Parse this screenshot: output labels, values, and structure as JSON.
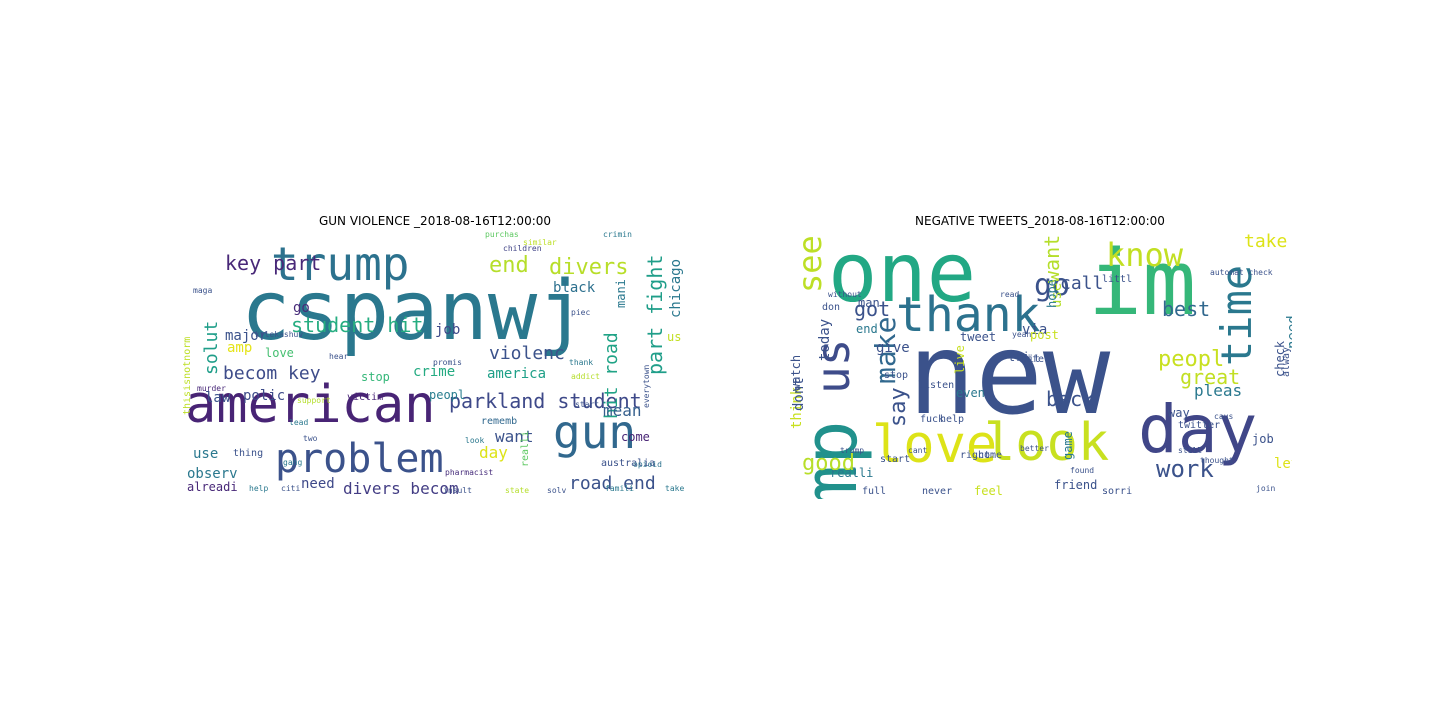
{
  "clouds": [
    {
      "title": "GUN VIOLENCE _2018-08-16T12:00:00",
      "words": [
        {
          "text": "cspanwj",
          "color": "#2a788e"
        },
        {
          "text": "american",
          "color": "#482475"
        },
        {
          "text": "trump",
          "color": "#2c728e"
        },
        {
          "text": "problem",
          "color": "#3b528b"
        },
        {
          "text": "gun",
          "color": "#31688e"
        },
        {
          "text": "key part",
          "color": "#482878"
        },
        {
          "text": "end",
          "color": "#b5de2b"
        },
        {
          "text": "divers",
          "color": "#b8de29"
        },
        {
          "text": "student hit",
          "color": "#26ad81"
        },
        {
          "text": "parkland student",
          "color": "#3e4989"
        },
        {
          "text": "becom key",
          "color": "#3e4c8a"
        },
        {
          "text": "violenc",
          "color": "#3b528b"
        },
        {
          "text": "road end",
          "color": "#3b528b"
        },
        {
          "text": "divers becom",
          "color": "#433d84"
        },
        {
          "text": "part fight",
          "color": "#1f9e89"
        },
        {
          "text": "hit road",
          "color": "#20a386"
        },
        {
          "text": "solut",
          "color": "#1f9e89"
        },
        {
          "text": "chicago",
          "color": "#2a788e"
        },
        {
          "text": "black",
          "color": "#2d708e"
        },
        {
          "text": "job",
          "color": "#3e4989"
        },
        {
          "text": "major",
          "color": "#3b528b"
        },
        {
          "text": "amp",
          "color": "#e5e419"
        },
        {
          "text": "go",
          "color": "#472c7a"
        },
        {
          "text": "america",
          "color": "#1fa088"
        },
        {
          "text": "mean",
          "color": "#355f8d"
        },
        {
          "text": "want",
          "color": "#3b528b"
        },
        {
          "text": "crime",
          "color": "#25ab82"
        },
        {
          "text": "stop",
          "color": "#35b779"
        },
        {
          "text": "peopl",
          "color": "#287d8e"
        },
        {
          "text": "polic",
          "color": "#3e4c8a"
        },
        {
          "text": "law",
          "color": "#3b528b"
        },
        {
          "text": "love",
          "color": "#44bf70"
        },
        {
          "text": "victim",
          "color": "#482475"
        },
        {
          "text": "use",
          "color": "#2a788e"
        },
        {
          "text": "observ",
          "color": "#2a788e"
        },
        {
          "text": "day",
          "color": "#dde318"
        },
        {
          "text": "need",
          "color": "#3e4989"
        },
        {
          "text": "alreadi",
          "color": "#482878"
        },
        {
          "text": "come",
          "color": "#482475"
        },
        {
          "text": "mani",
          "color": "#2a788e"
        },
        {
          "text": "us",
          "color": "#c2df23"
        },
        {
          "text": "thisisnotnorm",
          "color": "#bddf26"
        },
        {
          "text": "rememb",
          "color": "#31688e"
        },
        {
          "text": "thing",
          "color": "#3b528b"
        },
        {
          "text": "realli",
          "color": "#5ec962"
        },
        {
          "text": "australia",
          "color": "#3b528b"
        },
        {
          "text": "pharmacist",
          "color": "#472d7b"
        },
        {
          "text": "opioid",
          "color": "#2c728e"
        },
        {
          "text": "crimin",
          "color": "#2a788e"
        },
        {
          "text": "purchas",
          "color": "#5ec962"
        },
        {
          "text": "children",
          "color": "#414487"
        },
        {
          "text": "similar",
          "color": "#bddf26"
        },
        {
          "text": "maga",
          "color": "#3b528b"
        },
        {
          "text": "murder",
          "color": "#482878"
        },
        {
          "text": "kylekashuv",
          "color": "#3b528b"
        },
        {
          "text": "support",
          "color": "#b5de2b"
        },
        {
          "text": "lead",
          "color": "#2a788e"
        },
        {
          "text": "gang",
          "color": "#2a788e"
        },
        {
          "text": "help",
          "color": "#2a788e"
        },
        {
          "text": "citi",
          "color": "#3b528b"
        },
        {
          "text": "insult",
          "color": "#3b528b"
        },
        {
          "text": "solv",
          "color": "#3b528b"
        },
        {
          "text": "state",
          "color": "#b5de2b"
        },
        {
          "text": "famili",
          "color": "#2a788e"
        },
        {
          "text": "take",
          "color": "#2a788e"
        },
        {
          "text": "piec",
          "color": "#3b528b"
        },
        {
          "text": "thank",
          "color": "#2a788e"
        },
        {
          "text": "addict",
          "color": "#b5de2b"
        },
        {
          "text": "start",
          "color": "#3b528b"
        },
        {
          "text": "everytown",
          "color": "#3b528b"
        },
        {
          "text": "promis",
          "color": "#3b528b"
        },
        {
          "text": "look",
          "color": "#2a788e"
        },
        {
          "text": "hear",
          "color": "#3b528b"
        },
        {
          "text": "two",
          "color": "#3b528b"
        }
      ]
    },
    {
      "title": "NEGATIVE TWEETS_2018-08-16T12:00:00",
      "words": [
        {
          "text": "new",
          "color": "#3b528b"
        },
        {
          "text": "one",
          "color": "#22a884"
        },
        {
          "text": "im",
          "color": "#35b779"
        },
        {
          "text": "amp",
          "color": "#21918c"
        },
        {
          "text": "thank",
          "color": "#2c728e"
        },
        {
          "text": "love",
          "color": "#dde318"
        },
        {
          "text": "look",
          "color": "#c8e020"
        },
        {
          "text": "day",
          "color": "#404688"
        },
        {
          "text": "time",
          "color": "#2a788e"
        },
        {
          "text": "us",
          "color": "#3e4c8a"
        },
        {
          "text": "see",
          "color": "#bddf26"
        },
        {
          "text": "know",
          "color": "#c2df23"
        },
        {
          "text": "go",
          "color": "#3b528b"
        },
        {
          "text": "make",
          "color": "#31688e"
        },
        {
          "text": "work",
          "color": "#3b528b"
        },
        {
          "text": "peopl",
          "color": "#c8e020"
        },
        {
          "text": "good",
          "color": "#b8de29"
        },
        {
          "text": "say",
          "color": "#3b528b"
        },
        {
          "text": "best",
          "color": "#31688e"
        },
        {
          "text": "want",
          "color": "#b5de2b"
        },
        {
          "text": "back",
          "color": "#3b528b"
        },
        {
          "text": "great",
          "color": "#c2df23"
        },
        {
          "text": "got",
          "color": "#3b528b"
        },
        {
          "text": "take",
          "color": "#dde318"
        },
        {
          "text": "call",
          "color": "#3b528b"
        },
        {
          "text": "pleas",
          "color": "#2a788e"
        },
        {
          "text": "use",
          "color": "#b5de2b"
        },
        {
          "text": "today",
          "color": "#3b528b"
        },
        {
          "text": "give",
          "color": "#3b528b"
        },
        {
          "text": "via",
          "color": "#3b528b"
        },
        {
          "text": "think",
          "color": "#c8e020"
        },
        {
          "text": "dont",
          "color": "#3b528b"
        },
        {
          "text": "let",
          "color": "#dde318"
        },
        {
          "text": "need",
          "color": "#2a788e"
        },
        {
          "text": "check",
          "color": "#3b528b"
        },
        {
          "text": "man",
          "color": "#3b528b"
        },
        {
          "text": "end",
          "color": "#2a788e"
        },
        {
          "text": "live",
          "color": "#c8e020"
        },
        {
          "text": "tri",
          "color": "#3b528b"
        },
        {
          "text": "hope",
          "color": "#2a788e"
        },
        {
          "text": "even",
          "color": "#2a788e"
        },
        {
          "text": "fuck",
          "color": "#3b528b"
        },
        {
          "text": "watch",
          "color": "#3b528b"
        },
        {
          "text": "way",
          "color": "#3b528b"
        },
        {
          "text": "job",
          "color": "#3b528b"
        },
        {
          "text": "post",
          "color": "#c8e020"
        },
        {
          "text": "realli",
          "color": "#2a788e"
        },
        {
          "text": "tweet",
          "color": "#3b528b"
        },
        {
          "text": "listen",
          "color": "#3b528b"
        },
        {
          "text": "don",
          "color": "#3b528b"
        },
        {
          "text": "stop",
          "color": "#3b528b"
        },
        {
          "text": "help",
          "color": "#3b528b"
        },
        {
          "text": "start",
          "color": "#3b528b"
        },
        {
          "text": "right",
          "color": "#3b528b"
        },
        {
          "text": "come",
          "color": "#3b528b"
        },
        {
          "text": "feel",
          "color": "#c8e020"
        },
        {
          "text": "friend",
          "color": "#3b528b"
        },
        {
          "text": "sorri",
          "color": "#3b528b"
        },
        {
          "text": "never",
          "color": "#3b528b"
        },
        {
          "text": "full",
          "color": "#3b528b"
        },
        {
          "text": "game",
          "color": "#2a788e"
        },
        {
          "text": "twitter",
          "color": "#3b528b"
        },
        {
          "text": "life",
          "color": "#3b528b"
        },
        {
          "text": "bit",
          "color": "#3b528b"
        },
        {
          "text": "still",
          "color": "#3b528b"
        },
        {
          "text": "littl",
          "color": "#3b528b"
        },
        {
          "text": "alway",
          "color": "#3b528b"
        },
        {
          "text": "caus",
          "color": "#3b528b"
        },
        {
          "text": "better",
          "color": "#3b528b"
        },
        {
          "text": "found",
          "color": "#3b528b"
        },
        {
          "text": "cant",
          "color": "#3b528b"
        },
        {
          "text": "trump",
          "color": "#3b528b"
        },
        {
          "text": "join",
          "color": "#3b528b"
        },
        {
          "text": "automat check",
          "color": "#3b528b"
        },
        {
          "text": "thought",
          "color": "#3b528b"
        },
        {
          "text": "yeah",
          "color": "#3b528b"
        },
        {
          "text": "read",
          "color": "#3b528b"
        },
        {
          "text": "without",
          "color": "#3b528b"
        }
      ]
    }
  ]
}
